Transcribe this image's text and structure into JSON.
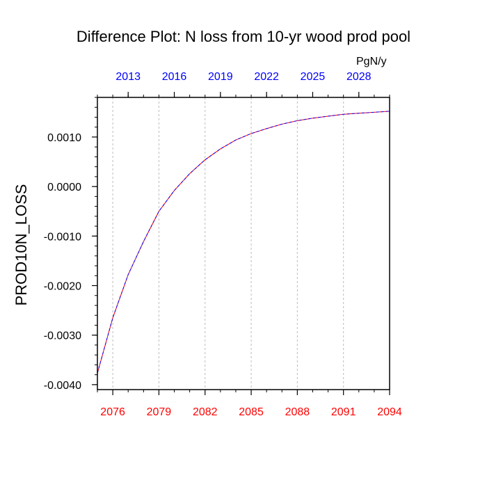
{
  "chart_data": {
    "type": "line",
    "title": "Difference Plot: N loss from 10-yr wood prod pool",
    "units_label": "PgN/y",
    "xlabel": "",
    "ylabel": "PROD10N_LOSS",
    "xlim": [
      2075,
      2094
    ],
    "ylim": [
      -0.0041,
      0.0018
    ],
    "x_ticks": [
      2076,
      2079,
      2082,
      2085,
      2088,
      2091,
      2094
    ],
    "x_ticklabels": [
      "2076",
      "2079",
      "2082",
      "2085",
      "2088",
      "2091",
      "2094"
    ],
    "top_x_ticks": [
      2013,
      2016,
      2019,
      2022,
      2025,
      2028
    ],
    "top_x_ticklabels": [
      "2013",
      "2016",
      "2019",
      "2022",
      "2025",
      "2028"
    ],
    "y_ticks": [
      -0.004,
      -0.003,
      -0.002,
      -0.001,
      0.0,
      0.001
    ],
    "y_ticklabels": [
      "-0.0040",
      "-0.0030",
      "-0.0020",
      "-0.0010",
      "0.0000",
      "0.0010"
    ],
    "grid": "vertical dashed",
    "colors": {
      "bottom_tick_labels": "#ff0000",
      "top_tick_labels": "#0000ff",
      "grid": "#bbbbbb",
      "series_1": "#ff0000",
      "series_2": "#0000ff"
    },
    "series": [
      {
        "x": [
          2075,
          2076,
          2077,
          2078,
          2079,
          2080,
          2081,
          2082,
          2083,
          2084,
          2085,
          2086,
          2087,
          2088,
          2089,
          2090,
          2091,
          2092,
          2093,
          2094
        ],
        "values": [
          -0.00377,
          -0.00265,
          -0.00178,
          -0.00111,
          -0.0005,
          -8e-05,
          0.00026,
          0.00054,
          0.00076,
          0.00094,
          0.00107,
          0.00117,
          0.00126,
          0.00133,
          0.00138,
          0.00142,
          0.00146,
          0.00148,
          0.0015,
          0.00152
        ]
      },
      {
        "x": [
          2075,
          2076,
          2077,
          2078,
          2079,
          2080,
          2081,
          2082,
          2083,
          2084,
          2085,
          2086,
          2087,
          2088,
          2089,
          2090,
          2091,
          2092,
          2093,
          2094
        ],
        "values": [
          -0.00377,
          -0.00265,
          -0.00178,
          -0.00111,
          -0.0005,
          -8e-05,
          0.00026,
          0.00054,
          0.00076,
          0.00094,
          0.00107,
          0.00117,
          0.00126,
          0.00133,
          0.00138,
          0.00142,
          0.00146,
          0.00148,
          0.0015,
          0.00152
        ]
      }
    ]
  }
}
